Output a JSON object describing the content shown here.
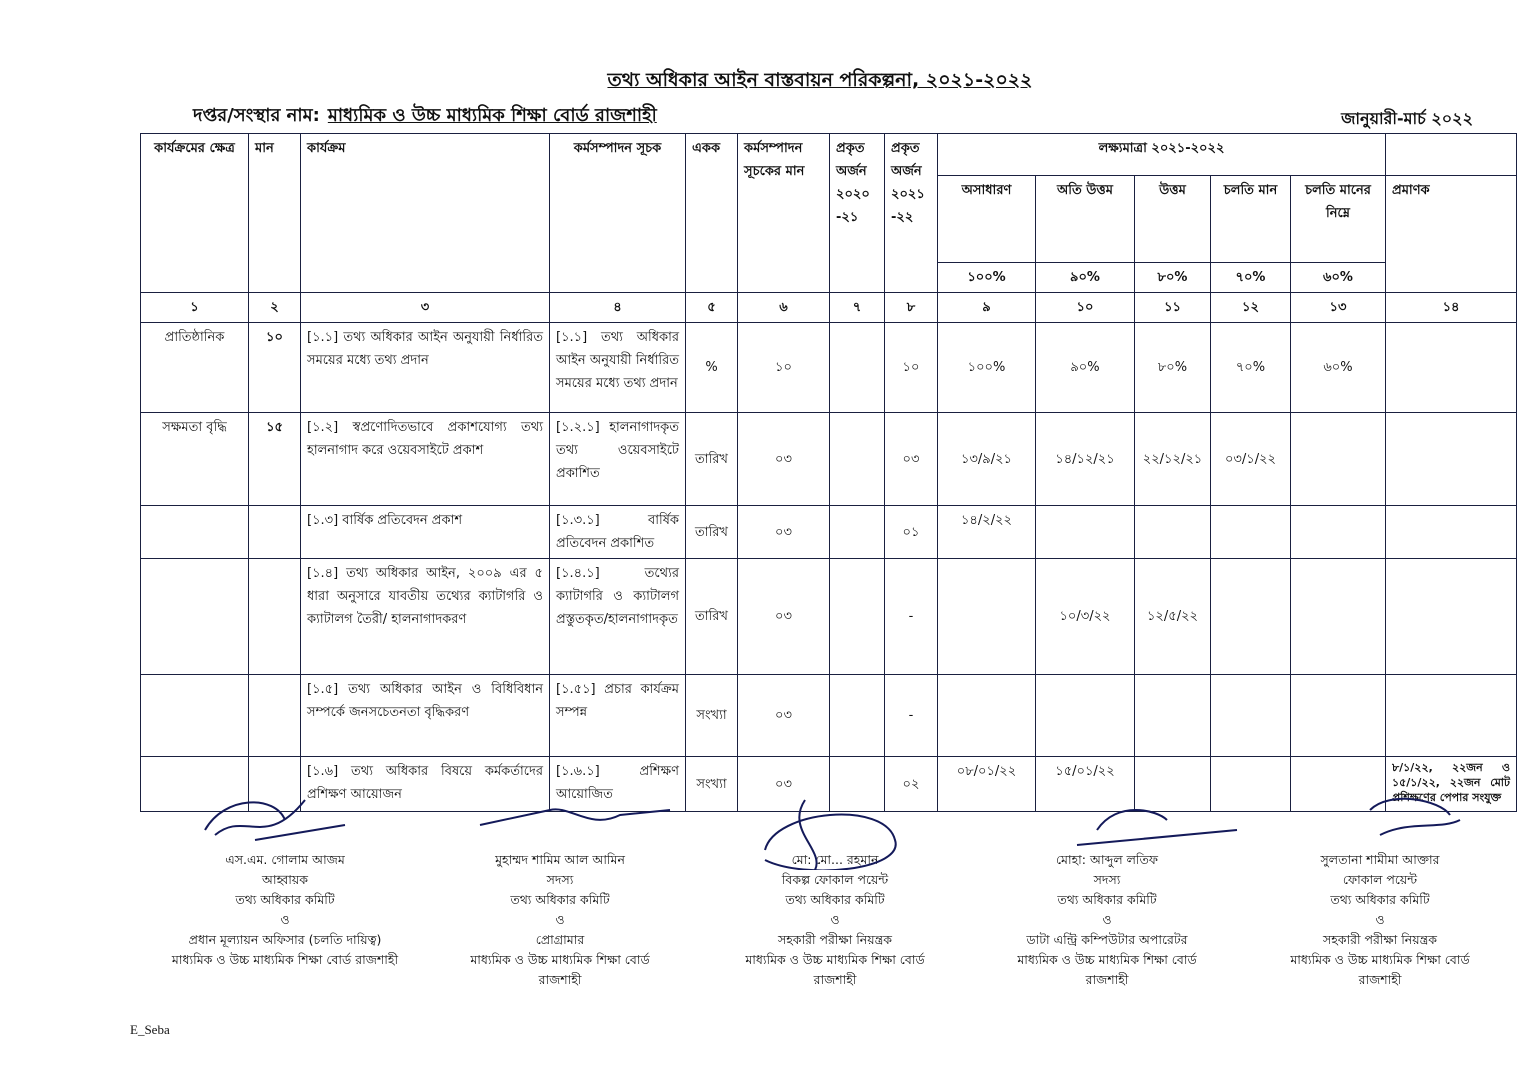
{
  "title": "তথ্য অধিকার আইন বাস্তবায়ন পরিকল্পনা, ২০২১-২০২২",
  "office_label": "দপ্তর/সংস্থার নাম:",
  "office_name": "মাধ্যমিক ও উচ্চ মাধ্যমিক শিক্ষা বোর্ড রাজশাহী",
  "period": "জানুয়ারী-মার্চ ২০২২",
  "table": {
    "headers": {
      "area": "কার্যক্রমের ক্ষেত্র",
      "weight": "মান",
      "activity": "কার্যক্রম",
      "indicator": "কর্মসম্পাদন সূচক",
      "unit": "একক",
      "indicator_value": "কর্মসম্পাদন সূচকের মান",
      "actual_2020": "প্রকৃত অর্জন ২০২০ -২১",
      "actual_2021": "প্রকৃত অর্জন ২০২১ -২২",
      "target_group": "লক্ষ্যমাত্রা ২০২১-২০২২",
      "excellent": "অসাধারণ",
      "very_good": "অতি উত্তম",
      "good": "উত্তম",
      "current": "চলতি মান",
      "below_current": "চলতি মানের নিম্নে",
      "evidence": "প্রমাণক"
    },
    "target_percents": [
      "১০০%",
      "৯০%",
      "৮০%",
      "৭০%",
      "৬০%"
    ],
    "column_numbers": [
      "১",
      "২",
      "৩",
      "৪",
      "৫",
      "৬",
      "৭",
      "৮",
      "৯",
      "১০",
      "১১",
      "১২",
      "১৩",
      "১৪"
    ],
    "rows": [
      {
        "area": "প্রাতিষ্ঠানিক",
        "weight": "১০",
        "activity": "[১.১] তথ্য অধিকার আইন অনুযায়ী নির্ধারিত সময়ের মধ্যে তথ্য প্রদান",
        "indicator": "[১.১] তথ্য অধিকার আইন অনুযায়ী নির্ধারিত সময়ের মধ্যে তথ্য প্রদান",
        "unit": "%",
        "value": "১০",
        "a2020": "",
        "a2021": "১০",
        "t1": "১০০%",
        "t2": "৯০%",
        "t3": "৮০%",
        "t4": "৭০%",
        "t5": "৬০%",
        "evidence": ""
      },
      {
        "area": "সক্ষমতা বৃদ্ধি",
        "weight": "১৫",
        "activity": "[১.২] স্বপ্রণোদিতভাবে প্রকাশযোগ্য তথ্য হালনাগাদ করে ওয়েবসাইটে প্রকাশ",
        "indicator": "[১.২.১] হালনাগাদকৃত তথ্য ওয়েবসাইটে প্রকাশিত",
        "unit": "তারিখ",
        "value": "০৩",
        "a2020": "",
        "a2021": "০৩",
        "t1": "১৩/৯/২১",
        "t2": "১৪/১২/২১",
        "t3": "২২/১২/২১",
        "t4": "০৩/১/২২",
        "t5": "",
        "evidence": ""
      },
      {
        "area": "",
        "weight": "",
        "activity": "[১.৩] বার্ষিক প্রতিবেদন প্রকাশ",
        "indicator": "[১.৩.১] বার্ষিক প্রতিবেদন প্রকাশিত",
        "unit": "তারিখ",
        "value": "০৩",
        "a2020": "",
        "a2021": "০১",
        "t1": "১৪/২/২২",
        "t2": "",
        "t3": "",
        "t4": "",
        "t5": "",
        "evidence": ""
      },
      {
        "area": "",
        "weight": "",
        "activity": "[১.৪] তথ্য অধিকার আইন, ২০০৯ এর ৫ ধারা অনুসারে যাবতীয় তথ্যের ক্যাটাগরি ও ক্যাটালগ তৈরী/ হালনাগাদকরণ",
        "indicator": "[১.৪.১] তথ্যের ক্যাটাগরি ও ক্যাটালগ প্রস্তুতকৃত/হালনাগাদকৃত",
        "unit": "তারিখ",
        "value": "০৩",
        "a2020": "",
        "a2021": "-",
        "t1": "",
        "t2": "১০/৩/২২",
        "t3": "১২/৫/২২",
        "t4": "",
        "t5": "",
        "evidence": ""
      },
      {
        "area": "",
        "weight": "",
        "activity": "[১.৫] তথ্য অধিকার আইন ও বিধিবিধান সম্পর্কে জনসচেতনতা বৃদ্ধিকরণ",
        "indicator": "[১.৫১] প্রচার কার্যক্রম সম্পন্ন",
        "unit": "সংখ্যা",
        "value": "০৩",
        "a2020": "",
        "a2021": "-",
        "t1": "",
        "t2": "",
        "t3": "",
        "t4": "",
        "t5": "",
        "evidence": ""
      },
      {
        "area": "",
        "weight": "",
        "activity": "[১.৬] তথ্য অধিকার বিষয়ে কর্মকর্তাদের প্রশিক্ষণ আয়োজন",
        "indicator": "[১.৬.১] প্রশিক্ষণ আয়োজিত",
        "unit": "সংখ্যা",
        "value": "০৩",
        "a2020": "",
        "a2021": "০২",
        "t1": "০৮/০১/২২",
        "t2": "১৫/০১/২২",
        "t3": "",
        "t4": "",
        "t5": "",
        "evidence": "৮/১/২২, ২২জন ও ১৫/১/২২, ২২জন মোট প্রশিক্ষণের পেপার সংযুক্ত"
      }
    ]
  },
  "signatories": [
    {
      "name": "এস.এম. গোলাম আজম",
      "role": "আহ্বায়ক",
      "committee": "তথ্য অধিকার কমিটি",
      "and": "ও",
      "designation": "প্রধান মূল্যায়ন অফিসার (চলতি দায়িত্ব)",
      "org": "মাধ্যমিক ও উচ্চ মাধ্যমিক শিক্ষা বোর্ড রাজশাহী",
      "org2": ""
    },
    {
      "name": "মুহাম্মদ শামিম আল আমিন",
      "role": "সদস্য",
      "committee": "তথ্য অধিকার কমিটি",
      "and": "ও",
      "designation": "প্রোগ্রামার",
      "org": "মাধ্যমিক ও উচ্চ মাধ্যমিক শিক্ষা বোর্ড",
      "org2": "রাজশাহী"
    },
    {
      "name": "মো: মো... রহমান",
      "role": "বিকল্প ফোকাল পয়েন্ট",
      "committee": "তথ্য অধিকার কমিটি",
      "and": "ও",
      "designation": "সহকারী পরীক্ষা নিয়ন্ত্রক",
      "org": "মাধ্যমিক ও উচ্চ মাধ্যমিক শিক্ষা বোর্ড",
      "org2": "রাজশাহী"
    },
    {
      "name": "মোহা: আব্দুল লতিফ",
      "role": "সদস্য",
      "committee": "তথ্য অধিকার কমিটি",
      "and": "ও",
      "designation": "ডাটা এন্ট্রি কম্পিউটার অপারেটর",
      "org": "মাধ্যমিক ও উচ্চ মাধ্যমিক শিক্ষা বোর্ড",
      "org2": "রাজশাহী"
    },
    {
      "name": "সুলতানা শামীমা আক্তার",
      "role": "ফোকাল পয়েন্ট",
      "committee": "তথ্য অধিকার কমিটি",
      "and": "ও",
      "designation": "সহকারী পরীক্ষা নিয়ন্ত্রক",
      "org": "মাধ্যমিক ও উচ্চ মাধ্যমিক শিক্ষা বোর্ড",
      "org2": "রাজশাহী"
    }
  ],
  "footer": "E_Seba",
  "colors": {
    "ink": "#111111",
    "table_border": "#1a2040",
    "signature_ink": "#141a5a"
  }
}
